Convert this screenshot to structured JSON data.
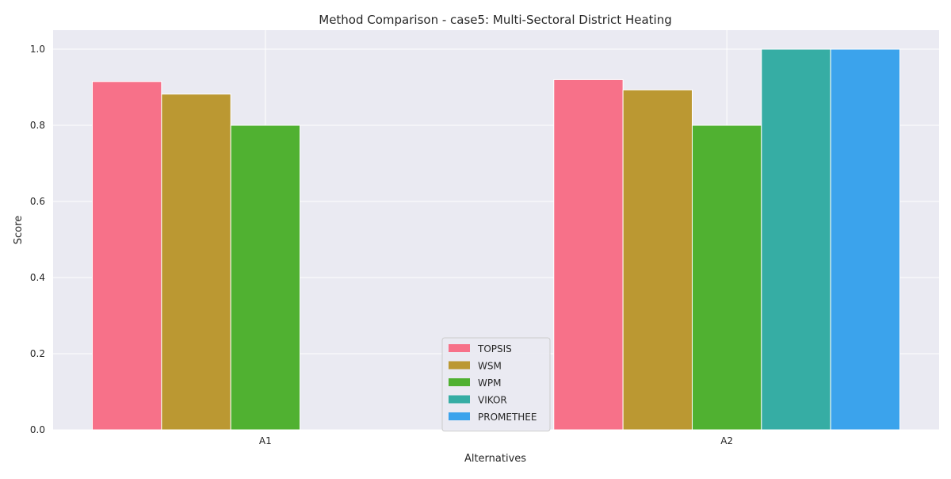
{
  "chart_data": {
    "type": "bar",
    "title": "Method Comparison - case5: Multi-Sectoral District Heating",
    "xlabel": "Alternatives",
    "ylabel": "Score",
    "categories": [
      "A1",
      "A2"
    ],
    "ylim": [
      0,
      1.05
    ],
    "yticks": [
      0.0,
      0.2,
      0.4,
      0.6,
      0.8,
      1.0
    ],
    "ytick_labels": [
      "0.0",
      "0.2",
      "0.4",
      "0.6",
      "0.8",
      "1.0"
    ],
    "grid": true,
    "legend_position": "bottom-center",
    "series": [
      {
        "name": "TOPSIS",
        "color": "#f77189",
        "values": [
          0.915,
          0.92
        ]
      },
      {
        "name": "WSM",
        "color": "#bb9832",
        "values": [
          0.882,
          0.893
        ]
      },
      {
        "name": "WPM",
        "color": "#50b131",
        "values": [
          0.8,
          0.8
        ]
      },
      {
        "name": "VIKOR",
        "color": "#36ada4",
        "values": [
          null,
          1.0
        ]
      },
      {
        "name": "PROMETHEE",
        "color": "#3ba3ec",
        "values": [
          null,
          1.0
        ]
      }
    ],
    "colors": {
      "plot_background": "#eaeaf2",
      "grid": "#ffffff"
    }
  }
}
